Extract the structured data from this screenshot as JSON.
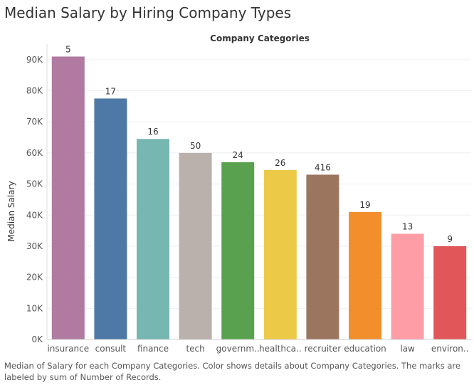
{
  "page": {
    "title": "Median Salary by Hiring Company Types",
    "caption": "Median of Salary for each Company Categories.  Color shows details about Company Categories.  The marks are labeled by sum of Number of Records."
  },
  "chart_data": {
    "type": "bar",
    "title": "Median Salary by Hiring Company Types",
    "header": "Company Categories",
    "xlabel": "",
    "ylabel": "Median Salary",
    "ylim": [
      0,
      95000
    ],
    "yticks": [
      0,
      10000,
      20000,
      30000,
      40000,
      50000,
      60000,
      70000,
      80000,
      90000
    ],
    "ytick_labels": [
      "0K",
      "10K",
      "20K",
      "30K",
      "40K",
      "50K",
      "60K",
      "70K",
      "80K",
      "90K"
    ],
    "grid": true,
    "categories": [
      "insurance",
      "consult",
      "finance",
      "tech",
      "governm..",
      "healthca..",
      "recruiter",
      "education",
      "law",
      "environ.."
    ],
    "values": [
      91000,
      77500,
      64500,
      60000,
      57000,
      54500,
      53000,
      41000,
      34000,
      30000
    ],
    "labels": [
      "5",
      "17",
      "16",
      "50",
      "24",
      "26",
      "416",
      "19",
      "13",
      "9"
    ],
    "colors": [
      "#b07aa1",
      "#4e79a7",
      "#76b7b2",
      "#bab0ac",
      "#59a14f",
      "#edc948",
      "#9c755f",
      "#f28e2b",
      "#ff9da7",
      "#e15759"
    ]
  }
}
